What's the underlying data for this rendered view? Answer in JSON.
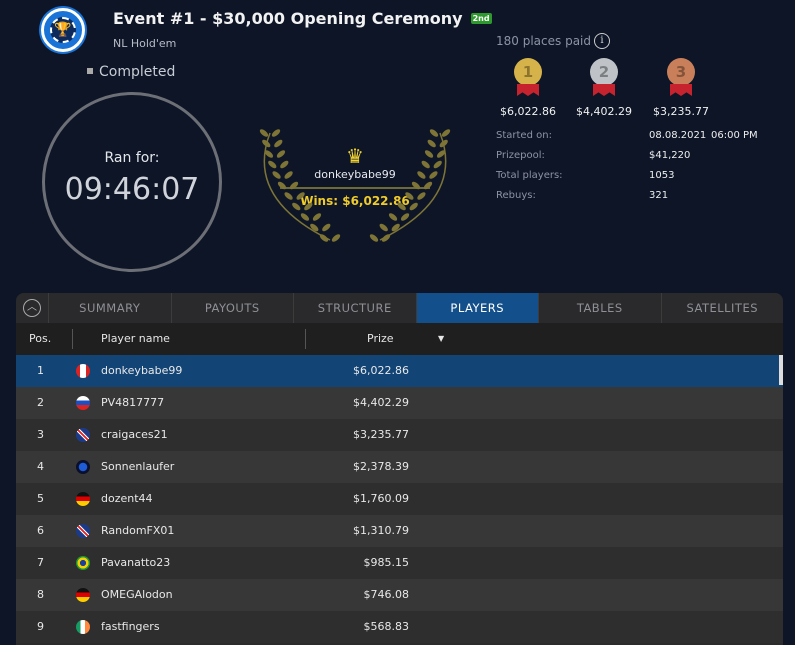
{
  "header": {
    "title": "Event #1 - $30,000 Opening Ceremony",
    "badge": "2nd",
    "game": "NL Hold'em",
    "status": "Completed"
  },
  "clock": {
    "label": "Ran for:",
    "time": "09:46:07"
  },
  "winner": {
    "name": "donkeybabe99",
    "wins": "Wins: $6,022.86"
  },
  "payout": {
    "places_paid": "180 places paid",
    "medals": [
      {
        "rank": "1",
        "prize": "$6,022.86",
        "color": "#d6b24a"
      },
      {
        "rank": "2",
        "prize": "$4,402.29",
        "color": "#bfc3c7"
      },
      {
        "rank": "3",
        "prize": "$3,235.77",
        "color": "#c9805a"
      }
    ]
  },
  "info": {
    "started_label": "Started on:",
    "started_date": "08.08.2021",
    "started_time": "06:00 PM",
    "prizepool_label": "Prizepool:",
    "prizepool": "$41,220",
    "players_label": "Total players:",
    "players": "1053",
    "rebuys_label": "Rebuys:",
    "rebuys": "321"
  },
  "tabs": [
    "SUMMARY",
    "PAYOUTS",
    "STRUCTURE",
    "PLAYERS",
    "TABLES",
    "SATELLITES"
  ],
  "active_tab": "PLAYERS",
  "table": {
    "headers": {
      "pos": "Pos.",
      "name": "Player name",
      "prize": "Prize"
    },
    "rows": [
      {
        "pos": "1",
        "name": "donkeybabe99",
        "prize": "$6,022.86",
        "flag": "canada"
      },
      {
        "pos": "2",
        "name": "PV4817777",
        "prize": "$4,402.29",
        "flag": "russia"
      },
      {
        "pos": "3",
        "name": "craigaces21",
        "prize": "$3,235.77",
        "flag": "uk"
      },
      {
        "pos": "4",
        "name": "Sonnenlaufer",
        "prize": "$2,378.39",
        "flag": "world"
      },
      {
        "pos": "5",
        "name": "dozent44",
        "prize": "$1,760.09",
        "flag": "germany"
      },
      {
        "pos": "6",
        "name": "RandomFX01",
        "prize": "$1,310.79",
        "flag": "uk"
      },
      {
        "pos": "7",
        "name": "Pavanatto23",
        "prize": "$985.15",
        "flag": "brazil"
      },
      {
        "pos": "8",
        "name": "OMEGAlodon",
        "prize": "$746.08",
        "flag": "germany"
      },
      {
        "pos": "9",
        "name": "fastfingers",
        "prize": "$568.83",
        "flag": "ireland"
      }
    ]
  }
}
